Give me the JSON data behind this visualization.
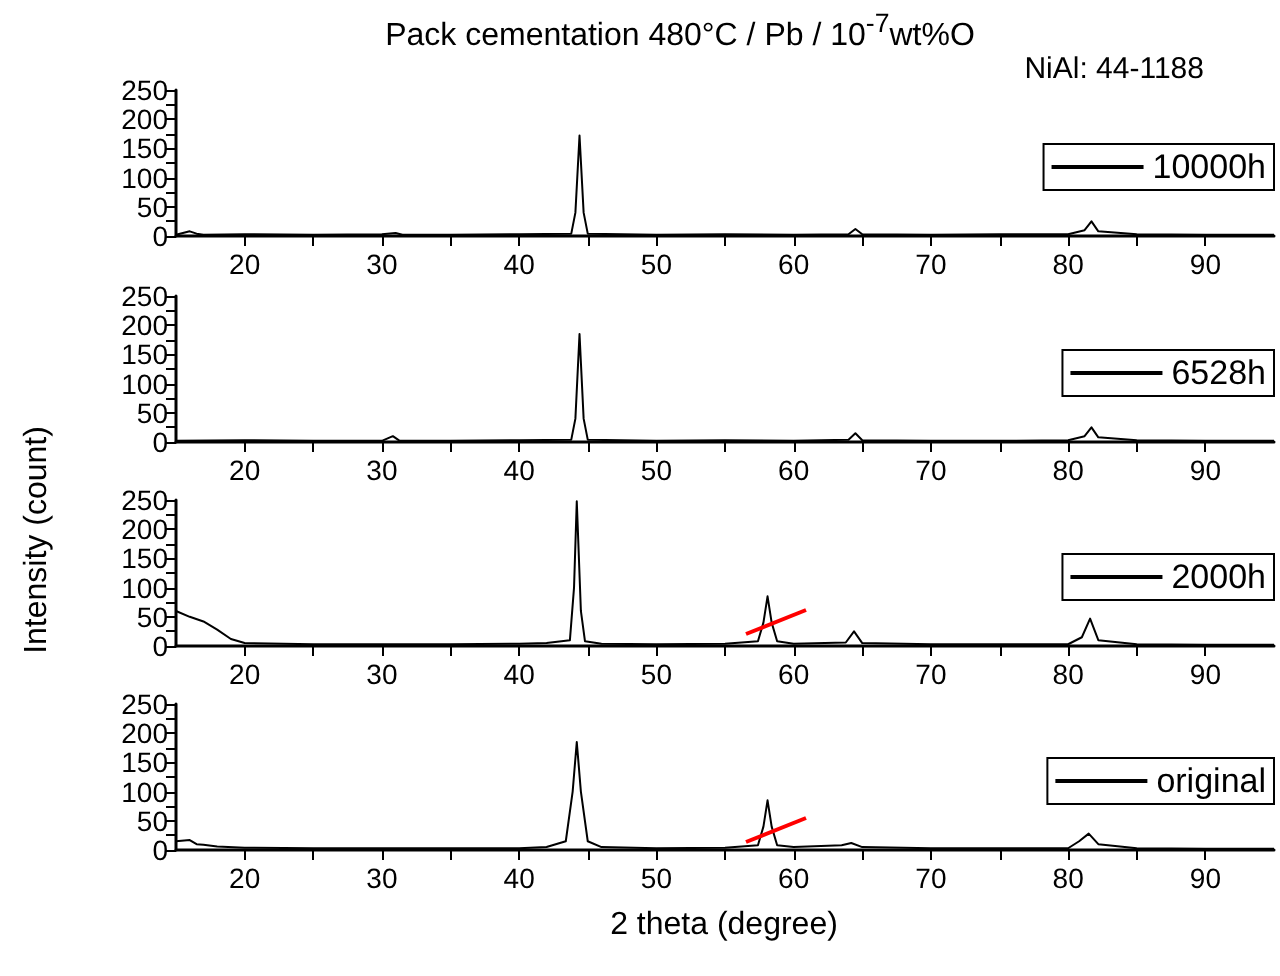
{
  "chart_data": [
    {
      "type": "line",
      "title": "Pack cementation 480°C / Pb / 10$^{-7}$wt%O",
      "annotations": [
        "NiAl: 44-1188"
      ],
      "legend": "right",
      "marker": "none",
      "xlim": [
        15,
        95
      ],
      "ylim": [
        0,
        250
      ],
      "xticks": [
        20,
        {
          "value": 25,
          "label": null
        },
        30,
        {
          "value": 35,
          "label": null
        },
        40,
        {
          "value": 45,
          "label": null
        },
        50,
        {
          "value": 55,
          "label": null
        },
        60,
        {
          "value": 65,
          "label": null
        },
        70,
        {
          "value": 75,
          "label": null
        },
        80,
        {
          "value": 85,
          "label": null
        },
        90
      ],
      "yticks": [
        0,
        {
          "value": 25,
          "label": null
        },
        50,
        {
          "value": 75,
          "label": null
        },
        100,
        {
          "value": 125,
          "label": null
        },
        150,
        {
          "value": 175,
          "label": null
        },
        200,
        {
          "value": 225,
          "label": null
        },
        250
      ],
      "series": [
        {
          "name": "10000h",
          "color": "#000000",
          "x": [
            15,
            16,
            16.5,
            17,
            20,
            25,
            30,
            31,
            31.5,
            35,
            40,
            43.8,
            44.1,
            44.4,
            44.7,
            45,
            50,
            55,
            60,
            64,
            64.5,
            65,
            70,
            75,
            80,
            81.2,
            81.7,
            82.2,
            85,
            90,
            95
          ],
          "values": [
            2,
            8,
            4,
            2,
            3,
            2,
            3,
            5,
            2,
            2,
            3,
            4,
            40,
            172,
            40,
            4,
            2,
            3,
            2,
            3,
            12,
            3,
            2,
            3,
            3,
            10,
            25,
            8,
            3,
            2,
            2
          ]
        }
      ]
    },
    {
      "type": "line",
      "legend": "right",
      "marker": "none",
      "xlim": [
        15,
        95
      ],
      "ylim": [
        0,
        250
      ],
      "xticks": [
        20,
        {
          "value": 25,
          "label": null
        },
        30,
        {
          "value": 35,
          "label": null
        },
        40,
        {
          "value": 45,
          "label": null
        },
        50,
        {
          "value": 55,
          "label": null
        },
        60,
        {
          "value": 65,
          "label": null
        },
        70,
        {
          "value": 75,
          "label": null
        },
        80,
        {
          "value": 85,
          "label": null
        },
        90
      ],
      "yticks": [
        0,
        {
          "value": 25,
          "label": null
        },
        50,
        {
          "value": 75,
          "label": null
        },
        100,
        {
          "value": 125,
          "label": null
        },
        150,
        {
          "value": 175,
          "label": null
        },
        200,
        {
          "value": 225,
          "label": null
        },
        250
      ],
      "series": [
        {
          "name": "6528h",
          "color": "#000000",
          "x": [
            15,
            20,
            25,
            30,
            30.8,
            31.3,
            35,
            40,
            43.8,
            44.1,
            44.4,
            44.7,
            45,
            50,
            55,
            60,
            64,
            64.5,
            65,
            70,
            75,
            80,
            81.2,
            81.7,
            82.2,
            85,
            90,
            95
          ],
          "values": [
            2,
            3,
            2,
            2,
            10,
            2,
            2,
            3,
            4,
            40,
            185,
            40,
            4,
            2,
            3,
            2,
            4,
            15,
            3,
            2,
            2,
            3,
            10,
            25,
            8,
            3,
            2,
            2
          ]
        }
      ]
    },
    {
      "type": "line",
      "ylabel": "Intensity (count)",
      "legend": "right",
      "marker": "none",
      "xlim": [
        15,
        95
      ],
      "ylim": [
        0,
        250
      ],
      "xticks": [
        20,
        {
          "value": 25,
          "label": null
        },
        30,
        {
          "value": 35,
          "label": null
        },
        40,
        {
          "value": 45,
          "label": null
        },
        50,
        {
          "value": 55,
          "label": null
        },
        60,
        {
          "value": 65,
          "label": null
        },
        70,
        {
          "value": 75,
          "label": null
        },
        80,
        {
          "value": 85,
          "label": null
        },
        90
      ],
      "yticks": [
        0,
        {
          "value": 25,
          "label": null
        },
        50,
        {
          "value": 75,
          "label": null
        },
        100,
        {
          "value": 125,
          "label": null
        },
        150,
        {
          "value": 175,
          "label": null
        },
        200,
        {
          "value": 225,
          "label": null
        },
        250
      ],
      "series": [
        {
          "name": "2000h",
          "color": "#000000",
          "x": [
            15,
            16,
            17,
            18,
            19,
            20,
            25,
            30,
            35,
            40,
            42,
            43.7,
            44,
            44.2,
            44.5,
            44.8,
            46,
            50,
            55,
            57.4,
            57.8,
            58.1,
            58.4,
            58.8,
            60,
            63.8,
            64.4,
            65,
            70,
            75,
            80,
            81,
            81.6,
            82.2,
            85,
            90,
            95
          ],
          "values": [
            60,
            50,
            42,
            28,
            12,
            5,
            3,
            3,
            3,
            4,
            5,
            10,
            100,
            248,
            60,
            8,
            4,
            3,
            4,
            8,
            40,
            85,
            40,
            8,
            4,
            6,
            25,
            5,
            3,
            3,
            3,
            15,
            47,
            10,
            3,
            2,
            2
          ]
        }
      ]
    },
    {
      "type": "line",
      "xlabel": "2 theta (degree)",
      "legend": "right",
      "marker": "none",
      "xlim": [
        15,
        95
      ],
      "ylim": [
        0,
        250
      ],
      "xticks": [
        20,
        {
          "value": 25,
          "label": null
        },
        30,
        {
          "value": 35,
          "label": null
        },
        40,
        {
          "value": 45,
          "label": null
        },
        50,
        {
          "value": 55,
          "label": null
        },
        60,
        {
          "value": 65,
          "label": null
        },
        70,
        {
          "value": 75,
          "label": null
        },
        80,
        {
          "value": 85,
          "label": null
        },
        90
      ],
      "yticks": [
        0,
        {
          "value": 25,
          "label": null
        },
        50,
        {
          "value": 75,
          "label": null
        },
        100,
        {
          "value": 125,
          "label": null
        },
        150,
        {
          "value": 175,
          "label": null
        },
        200,
        {
          "value": 225,
          "label": null
        },
        250
      ],
      "series": [
        {
          "name": "original",
          "color": "#000000",
          "x": [
            15,
            16,
            16.5,
            17,
            18,
            20,
            25,
            30,
            35,
            40,
            42,
            43.4,
            43.9,
            44.2,
            44.5,
            45,
            46,
            50,
            55,
            57.4,
            57.8,
            58.1,
            58.4,
            58.8,
            60,
            63.5,
            64.2,
            65,
            70,
            75,
            80,
            80.8,
            81.5,
            82.2,
            85,
            90,
            95
          ],
          "values": [
            15,
            17,
            10,
            9,
            6,
            4,
            3,
            3,
            3,
            3,
            5,
            15,
            100,
            185,
            100,
            15,
            5,
            3,
            4,
            8,
            40,
            85,
            40,
            8,
            5,
            8,
            12,
            5,
            3,
            3,
            3,
            15,
            28,
            10,
            3,
            2,
            2
          ]
        }
      ]
    }
  ]
}
